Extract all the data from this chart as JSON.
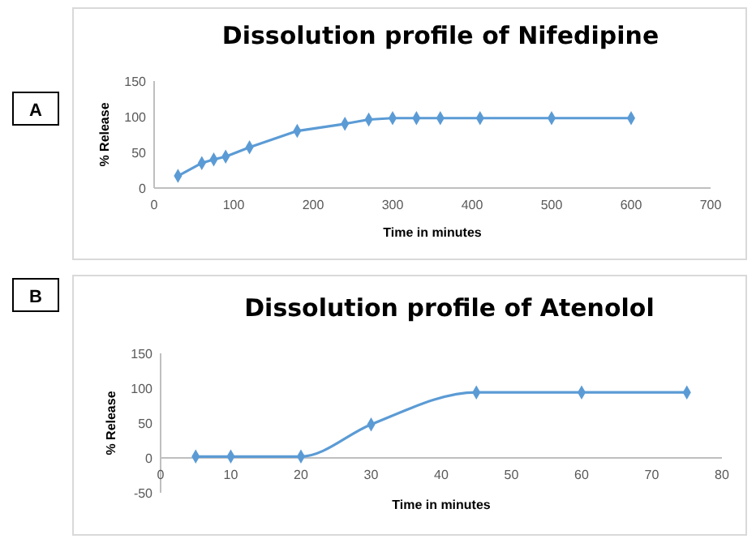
{
  "chart_data": [
    {
      "type": "line",
      "title": "Dissolution profile of Nifedipine",
      "xlabel": "Time in minutes",
      "ylabel": "% Release",
      "annotations": [
        "A"
      ],
      "marker": "diamond",
      "x": [
        30,
        60,
        75,
        90,
        120,
        180,
        240,
        270,
        300,
        330,
        360,
        410,
        500,
        600
      ],
      "series": [
        {
          "color": "#5b9bd5",
          "values": [
            17,
            35,
            40,
            44,
            57,
            80,
            90,
            96,
            98,
            98,
            98,
            98,
            98,
            98
          ]
        }
      ],
      "xlim": [
        0,
        700
      ],
      "xticks": [
        0,
        100,
        200,
        300,
        400,
        500,
        600,
        700
      ],
      "ylim": [
        0,
        150
      ],
      "yticks": [
        0,
        50,
        100,
        150
      ]
    },
    {
      "type": "line",
      "title": "Dissolution profile of Atenolol",
      "xlabel": "Time in minutes",
      "ylabel": "% Release",
      "annotations": [
        "B"
      ],
      "marker": "diamond",
      "x": [
        5,
        10,
        20,
        30,
        45,
        60,
        75
      ],
      "series": [
        {
          "color": "#5b9bd5",
          "values": [
            2,
            2,
            2,
            48,
            94,
            94,
            94
          ]
        }
      ],
      "xlim": [
        0,
        80
      ],
      "xticks": [
        0,
        10,
        20,
        30,
        40,
        50,
        60,
        70,
        80
      ],
      "ylim": [
        -50,
        150
      ],
      "yticks": [
        -50,
        0,
        50,
        100,
        150
      ]
    }
  ]
}
